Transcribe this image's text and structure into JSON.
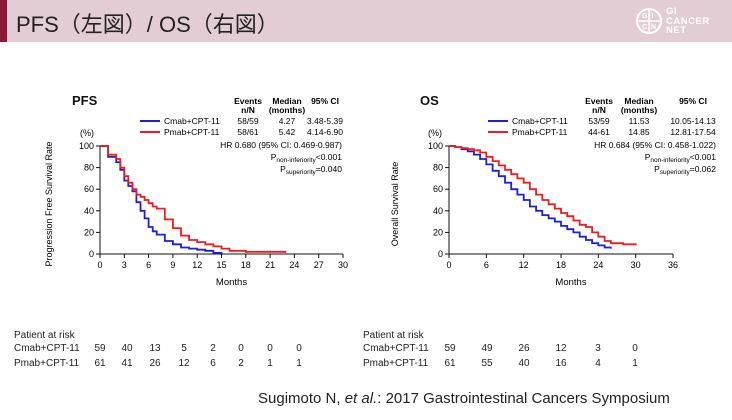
{
  "header": {
    "title": "PFS（左図）/ OS（右図）",
    "logo_lines": [
      "GI",
      "CANCER",
      "NET"
    ],
    "logo_mark_chars": [
      "G",
      "I",
      "C",
      "N"
    ],
    "accent_color": "#8a1a36",
    "band_color": "#e3cdd4"
  },
  "chart_data": [
    {
      "type": "line",
      "title": "PFS",
      "xlabel": "Months",
      "ylabel": "Progression Free Survival Rate",
      "y_unit": "(%)",
      "xlim": [
        0,
        30
      ],
      "ylim": [
        0,
        100
      ],
      "xticks": [
        0,
        3,
        6,
        9,
        12,
        15,
        18,
        21,
        24,
        27,
        30
      ],
      "yticks": [
        0,
        20,
        40,
        60,
        80,
        100
      ],
      "table_headers": {
        "events": "Events",
        "events_sub": "n/N",
        "median": "Median",
        "median_sub": "(months)",
        "ci": "95% CI"
      },
      "series": [
        {
          "name": "Cmab+CPT-11",
          "color": "#1f1fd6",
          "events": "58/59",
          "median": "4.27",
          "ci": "3.48-5.39",
          "x": [
            0,
            1,
            2,
            2.5,
            3,
            3.5,
            4,
            4.5,
            5,
            5.5,
            6,
            6.5,
            7,
            8,
            9,
            10,
            11,
            12,
            13,
            14,
            15
          ],
          "y": [
            100,
            90,
            85,
            78,
            68,
            63,
            58,
            48,
            40,
            33,
            25,
            21,
            18,
            12,
            9,
            6,
            5,
            4,
            3,
            1,
            0
          ]
        },
        {
          "name": "Pmab+CPT-11",
          "color": "#ee1c1c",
          "events": "58/61",
          "median": "5.42",
          "ci": "4.14-6.90",
          "x": [
            0,
            1,
            2,
            2.5,
            3,
            3.5,
            4,
            4.5,
            5,
            5.5,
            6,
            6.5,
            7,
            8,
            9,
            10,
            11,
            12,
            13,
            14,
            15,
            16,
            18,
            20,
            23
          ],
          "y": [
            100,
            92,
            88,
            80,
            72,
            66,
            60,
            55,
            53,
            50,
            47,
            44,
            42,
            32,
            24,
            17,
            13,
            11,
            9,
            7,
            5,
            3,
            2,
            2,
            2
          ]
        }
      ],
      "stats": {
        "hr": "HR 0.680 (95% CI: 0.469-0.987)",
        "p1_label": "P",
        "p1_sub": "non-inferiority",
        "p1_val": "<0.001",
        "p2_label": "P",
        "p2_sub": "superiority",
        "p2_val": "=0.040"
      },
      "risk": {
        "title": "Patient at risk",
        "rows": [
          {
            "name": "Cmab+CPT-11",
            "values": [
              "59",
              "40",
              "13",
              "5",
              "2",
              "0",
              "0",
              "0"
            ]
          },
          {
            "name": "Pmab+CPT-11",
            "values": [
              "61",
              "41",
              "26",
              "12",
              "6",
              "2",
              "1",
              "1"
            ]
          }
        ]
      }
    },
    {
      "type": "line",
      "title": "OS",
      "xlabel": "Months",
      "ylabel": "Overall Survival Rate",
      "y_unit": "(%)",
      "xlim": [
        0,
        36
      ],
      "ylim": [
        0,
        100
      ],
      "xticks": [
        0,
        6,
        12,
        18,
        24,
        30,
        36
      ],
      "yticks": [
        0,
        20,
        40,
        60,
        80,
        100
      ],
      "table_headers": {
        "events": "Events",
        "events_sub": "n/N",
        "median": "Median",
        "median_sub": "(months)",
        "ci": "95% CI"
      },
      "series": [
        {
          "name": "Cmab+CPT-11",
          "color": "#1f1fd6",
          "events": "53/59",
          "median": "11.53",
          "ci": "10.05-14.13",
          "x": [
            0,
            1,
            2,
            3,
            4,
            5,
            6,
            7,
            8,
            9,
            10,
            11,
            12,
            13,
            14,
            15,
            16,
            17,
            18,
            19,
            20,
            21,
            22,
            23,
            24,
            25,
            26
          ],
          "y": [
            100,
            99,
            97,
            95,
            92,
            88,
            83,
            77,
            72,
            66,
            60,
            55,
            50,
            44,
            40,
            36,
            33,
            30,
            26,
            23,
            20,
            16,
            13,
            10,
            8,
            6,
            5
          ]
        },
        {
          "name": "Pmab+CPT-11",
          "color": "#ee1c1c",
          "events": "44-61",
          "median": "14.85",
          "ci": "12.81-17.54",
          "x": [
            0,
            1,
            2,
            3,
            4,
            5,
            6,
            7,
            8,
            9,
            10,
            11,
            12,
            13,
            14,
            15,
            16,
            17,
            18,
            19,
            20,
            21,
            22,
            23,
            24,
            25,
            26,
            28,
            30
          ],
          "y": [
            100,
            99,
            98,
            97,
            96,
            94,
            90,
            86,
            82,
            78,
            74,
            70,
            66,
            60,
            55,
            50,
            46,
            42,
            38,
            35,
            31,
            27,
            25,
            20,
            16,
            12,
            10,
            9,
            8
          ]
        }
      ],
      "stats": {
        "hr": "HR 0.684 (95% CI: 0.458-1.022)",
        "p1_label": "P",
        "p1_sub": "non-inferiority",
        "p1_val": "<0.001",
        "p2_label": "P",
        "p2_sub": "superiority",
        "p2_val": "=0.062"
      },
      "risk": {
        "title": "Patient at risk",
        "rows": [
          {
            "name": "Cmab+CPT-11",
            "values": [
              "59",
              "49",
              "26",
              "12",
              "3",
              "0"
            ]
          },
          {
            "name": "Pmab+CPT-11",
            "values": [
              "61",
              "55",
              "40",
              "16",
              "4",
              "1"
            ]
          }
        ]
      }
    }
  ],
  "citation": {
    "author": "Sugimoto N, ",
    "etal": "et al.",
    "rest": ": 2017 Gastrointestinal Cancers Symposium"
  }
}
